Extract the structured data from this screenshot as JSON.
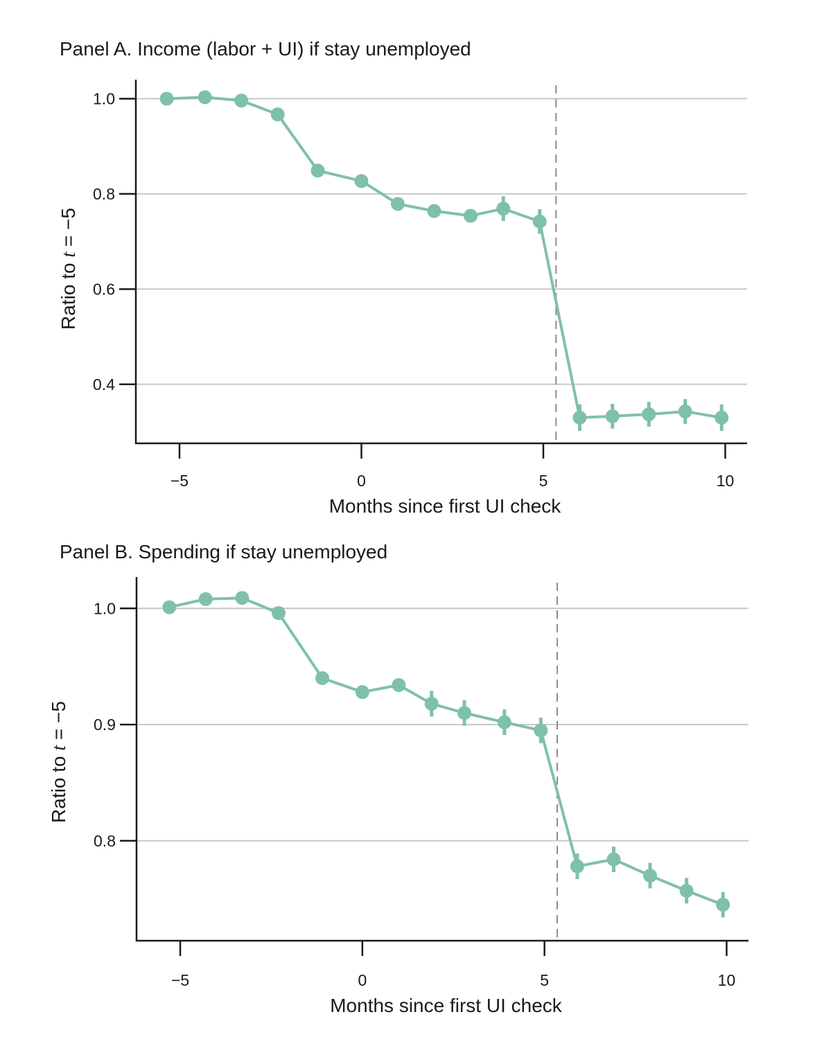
{
  "chart_data": [
    {
      "type": "line",
      "title": "Panel A. Income (labor + UI) if stay unemployed",
      "xlabel": "Months since first UI check",
      "ylabel": "Ratio to t = −5",
      "ylabel_parts": [
        "Ratio to ",
        "t",
        " = −5"
      ],
      "xlim": [
        -6.2,
        10.6
      ],
      "ylim": [
        0.276,
        1.04
      ],
      "xticks": [
        -5,
        0,
        5,
        10
      ],
      "xtick_labels": [
        "−5",
        "0",
        "5",
        "10"
      ],
      "yticks": [
        1.0,
        0.8,
        0.6,
        0.4
      ],
      "ytick_labels": [
        "1.0",
        "0.8",
        "0.6",
        "0.4"
      ],
      "grid": "horizontal",
      "reference_line_x": 5.35,
      "color": "#7fc1a8",
      "series": [
        {
          "name": "Income",
          "x": [
            -5.35,
            -4.3,
            -3.3,
            -2.3,
            -1.2,
            0,
            1,
            2,
            3,
            3.9,
            4.9,
            6,
            6.9,
            7.9,
            8.9,
            9.9
          ],
          "y": [
            1.0,
            1.003,
            0.996,
            0.967,
            0.849,
            0.827,
            0.779,
            0.764,
            0.754,
            0.769,
            0.742,
            0.33,
            0.333,
            0.337,
            0.343,
            0.33
          ],
          "err": [
            0,
            0,
            0,
            0,
            0,
            0,
            0,
            0,
            0,
            0.026,
            0.026,
            0.028,
            0.026,
            0.026,
            0.026,
            0.028
          ]
        }
      ]
    },
    {
      "type": "line",
      "title": "Panel B. Spending if stay unemployed",
      "xlabel": "Months since first UI check",
      "ylabel": "Ratio to t = −5",
      "ylabel_parts": [
        "Ratio to ",
        "t",
        " = −5"
      ],
      "xlim": [
        -6.2,
        10.6
      ],
      "ylim": [
        0.714,
        1.027
      ],
      "xticks": [
        -5,
        0,
        5,
        10
      ],
      "xtick_labels": [
        "−5",
        "0",
        "5",
        "10"
      ],
      "yticks": [
        1.0,
        0.9,
        0.8
      ],
      "ytick_labels": [
        "1.0",
        "0.9",
        "0.8"
      ],
      "grid": "horizontal",
      "reference_line_x": 5.35,
      "color": "#7fc1a8",
      "series": [
        {
          "name": "Spending",
          "x": [
            -5.3,
            -4.3,
            -3.3,
            -2.3,
            -1.1,
            0,
            1,
            1.9,
            2.8,
            3.9,
            4.9,
            5.9,
            6.9,
            7.9,
            8.9,
            9.9
          ],
          "y": [
            1.001,
            1.008,
            1.009,
            0.996,
            0.94,
            0.928,
            0.934,
            0.918,
            0.91,
            0.902,
            0.895,
            0.778,
            0.784,
            0.77,
            0.757,
            0.745
          ],
          "err": [
            0,
            0,
            0,
            0,
            0,
            0,
            0,
            0.011,
            0.011,
            0.011,
            0.011,
            0.011,
            0.011,
            0.011,
            0.011,
            0.011
          ]
        }
      ]
    }
  ]
}
